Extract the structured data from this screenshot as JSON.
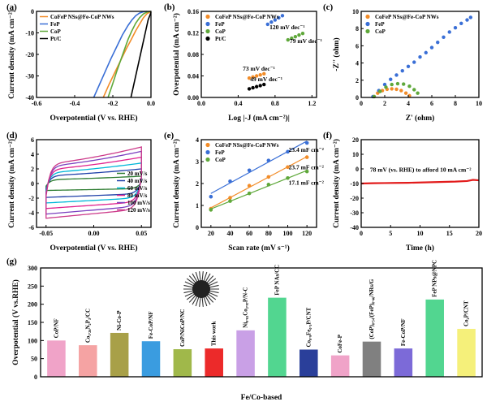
{
  "chart_data": [
    {
      "panel": "(a)",
      "type": "line",
      "ylabel": "Current density (mA cm⁻²)",
      "xlabel": "Overpotential (V vs. RHE)",
      "xlim": [
        -0.6,
        0.0
      ],
      "ylim": [
        -40,
        0
      ],
      "xticks": [
        "-0.6",
        "-0.4",
        "-0.2",
        "0.0"
      ],
      "yticks": [
        "0",
        "-10",
        "-20",
        "-30",
        "-40"
      ],
      "legend_position": "top-left",
      "series": [
        {
          "name": "CoFeP NSs@Fe-CoP NWs",
          "color": "#f28c28",
          "x": [
            -0.25,
            -0.22,
            -0.19,
            -0.16,
            -0.13,
            -0.1,
            -0.08,
            -0.06,
            -0.04,
            -0.02,
            0.0
          ],
          "y": [
            -40,
            -34,
            -28.5,
            -23,
            -17.5,
            -12.5,
            -9,
            -6,
            -3,
            -1,
            0
          ]
        },
        {
          "name": "FeP",
          "color": "#3a6fd6",
          "x": [
            -0.3,
            -0.27,
            -0.24,
            -0.21,
            -0.18,
            -0.15,
            -0.12,
            -0.1,
            -0.08,
            -0.06,
            -0.04,
            -0.02
          ],
          "y": [
            -40,
            -34,
            -28,
            -22,
            -16.5,
            -11,
            -6.5,
            -4,
            -2,
            -0.8,
            -0.2,
            0
          ]
        },
        {
          "name": "CoP",
          "color": "#5fa83a",
          "x": [
            -0.225,
            -0.2,
            -0.18,
            -0.16,
            -0.14,
            -0.12,
            -0.1,
            -0.08,
            -0.06,
            -0.04,
            -0.02,
            0.0
          ],
          "y": [
            -40,
            -33.5,
            -28,
            -23,
            -18,
            -13,
            -9,
            -5.5,
            -3,
            -1.2,
            -0.3,
            0
          ]
        },
        {
          "name": "Pt/C",
          "color": "#000000",
          "x": [
            -0.105,
            -0.09,
            -0.075,
            -0.06,
            -0.045,
            -0.03,
            -0.015,
            0.0
          ],
          "y": [
            -40,
            -34,
            -28,
            -22,
            -16,
            -10,
            -4,
            -0.5
          ]
        }
      ]
    },
    {
      "panel": "(b)",
      "type": "scatter",
      "ylabel": "Overpotential (mA cm⁻²)",
      "xlabel": "Log |-J (mA cm⁻²)|",
      "xlim": [
        0.0,
        1.25
      ],
      "ylim": [
        0.0,
        0.16
      ],
      "xticks": [
        "0.0",
        "0.4",
        "0.8",
        "1.2"
      ],
      "yticks": [
        "0.00",
        "0.04",
        "0.08",
        "0.12",
        "0.16"
      ],
      "legend_position": "top-left",
      "series": [
        {
          "name": "CoFeP NSs@Fe-CoP NWs",
          "color": "#f28c28",
          "x": [
            0.52,
            0.56,
            0.6,
            0.64,
            0.68
          ],
          "y": [
            0.036,
            0.038,
            0.04,
            0.042,
            0.044
          ]
        },
        {
          "name": "FeP",
          "color": "#3a6fd6",
          "x": [
            0.72,
            0.76,
            0.8,
            0.84,
            0.88
          ],
          "y": [
            0.136,
            0.14,
            0.144,
            0.148,
            0.152
          ]
        },
        {
          "name": "CoP",
          "color": "#5fa83a",
          "x": [
            0.94,
            0.98,
            1.02,
            1.06,
            1.1
          ],
          "y": [
            0.107,
            0.11,
            0.113,
            0.116,
            0.119
          ]
        },
        {
          "name": "Pt/C",
          "color": "#000000",
          "x": [
            0.52,
            0.56,
            0.6,
            0.64,
            0.68
          ],
          "y": [
            0.016,
            0.018,
            0.02,
            0.022,
            0.024
          ]
        }
      ],
      "annotations": [
        {
          "text": "73 mV dec⁻¹",
          "x": 0.45,
          "y": 0.05
        },
        {
          "text": "120 mV dec⁻¹",
          "x": 0.74,
          "y": 0.127
        },
        {
          "text": "79 mV dec⁻¹",
          "x": 0.96,
          "y": 0.101
        },
        {
          "text": "49 mV dec⁻¹",
          "x": 0.53,
          "y": 0.03
        }
      ]
    },
    {
      "panel": "(c)",
      "type": "scatter",
      "ylabel": "-Z'' (ohm)",
      "xlabel": "Z' (ohm)",
      "xlim": [
        0,
        10
      ],
      "ylim": [
        0,
        10
      ],
      "xticks": [
        "0",
        "2",
        "4",
        "6",
        "8",
        "10"
      ],
      "yticks": [
        "0",
        "2",
        "4",
        "6",
        "8",
        "10"
      ],
      "legend_position": "top-left",
      "series": [
        {
          "name": "CoFeP NSs@Fe-CoP NWs",
          "color": "#f28c28",
          "x": [
            1.1,
            1.4,
            1.8,
            2.2,
            2.6,
            3.0,
            3.4,
            3.8,
            4.1
          ],
          "y": [
            0.1,
            0.5,
            0.8,
            0.95,
            1.0,
            0.95,
            0.8,
            0.5,
            0.2
          ]
        },
        {
          "name": "FeP",
          "color": "#3a6fd6",
          "x": [
            1.0,
            1.5,
            2.0,
            2.5,
            3.0,
            3.5,
            4.0,
            4.5,
            5.0,
            5.5,
            6.0,
            6.5,
            7.0,
            7.5,
            8.0,
            8.5,
            9.0,
            9.3
          ],
          "y": [
            0.1,
            0.8,
            1.5,
            2.1,
            2.6,
            3.1,
            3.6,
            4.1,
            4.7,
            5.2,
            5.8,
            6.4,
            7.0,
            7.6,
            8.1,
            8.6,
            9.0,
            9.3
          ]
        },
        {
          "name": "CoP",
          "color": "#5fa83a",
          "x": [
            1.1,
            1.6,
            2.1,
            2.6,
            3.1,
            3.6,
            4.1,
            4.5,
            4.8
          ],
          "y": [
            0.1,
            0.7,
            1.2,
            1.5,
            1.6,
            1.55,
            1.3,
            0.9,
            0.5
          ]
        }
      ]
    },
    {
      "panel": "(d)",
      "type": "line",
      "ylabel": "Current density (mA cm⁻²)",
      "xlabel": "Overpotential (V vs. RHE)",
      "xlim": [
        -0.06,
        0.06
      ],
      "ylim": [
        -6,
        6
      ],
      "xticks": [
        "-0.05",
        "0.00",
        "0.05"
      ],
      "yticks": [
        "6",
        "4",
        "2",
        "0",
        "-2",
        "-4",
        "-6"
      ],
      "legend_position": "bottom-right",
      "series": [
        {
          "name": "20 mV/s",
          "color": "#2e7d32",
          "amplitude": 1.0
        },
        {
          "name": "40 mV/s",
          "color": "#1e3fa8",
          "amplitude": 2.0
        },
        {
          "name": "60 mV/s",
          "color": "#00b7d8",
          "amplitude": 2.8
        },
        {
          "name": "80 mV/s",
          "color": "#e0208c",
          "amplitude": 3.6
        },
        {
          "name": "100 mV/s",
          "color": "#7b3fbf",
          "amplitude": 4.4
        },
        {
          "name": "120 mV/s",
          "color": "#cc3a8a",
          "amplitude": 5.0
        }
      ]
    },
    {
      "panel": "(e)",
      "type": "scatter",
      "ylabel": "Current density (mA cm⁻²)",
      "xlabel": "Scan rate (mV s⁻¹)",
      "xlim": [
        10,
        130
      ],
      "ylim": [
        0,
        4
      ],
      "xticks": [
        "20",
        "40",
        "60",
        "80",
        "100",
        "120"
      ],
      "yticks": [
        "0",
        "1",
        "2",
        "3",
        "4"
      ],
      "legend_position": "top-left",
      "series": [
        {
          "name": "CoFeP NSs@Fe-CoP NWs",
          "color": "#f28c28",
          "x": [
            20,
            40,
            60,
            80,
            100,
            120
          ],
          "y": [
            0.85,
            1.35,
            1.9,
            2.3,
            2.75,
            3.2
          ]
        },
        {
          "name": "FeP",
          "color": "#3a6fd6",
          "x": [
            20,
            40,
            60,
            80,
            100,
            120
          ],
          "y": [
            1.4,
            2.1,
            2.6,
            3.05,
            3.45,
            3.85
          ]
        },
        {
          "name": "CoP",
          "color": "#5fa83a",
          "x": [
            20,
            40,
            60,
            80,
            100,
            120
          ],
          "y": [
            0.8,
            1.2,
            1.55,
            1.95,
            2.25,
            2.55
          ]
        }
      ],
      "annotations": [
        {
          "text": "23.4 mF cm⁻²",
          "x": 101,
          "y": 3.45
        },
        {
          "text": "23.7 mF cm⁻²",
          "x": 101,
          "y": 2.65
        },
        {
          "text": "17.1 mF cm⁻²",
          "x": 101,
          "y": 1.95
        }
      ]
    },
    {
      "panel": "(f)",
      "type": "line",
      "ylabel": "Current density (mA cm⁻²)",
      "xlabel": "Time (h)",
      "xlim": [
        0,
        20
      ],
      "ylim": [
        -40,
        20
      ],
      "xticks": [
        "0",
        "5",
        "10",
        "15",
        "20"
      ],
      "yticks": [
        "20",
        "10",
        "0",
        "-10",
        "-20",
        "-30",
        "-40"
      ],
      "series": [
        {
          "name": "",
          "color": "#e21b1b",
          "x": [
            0,
            2,
            4,
            6,
            8,
            10,
            12,
            14,
            16,
            18,
            19,
            20
          ],
          "y": [
            -10,
            -9.8,
            -9.7,
            -9.6,
            -9.5,
            -9.3,
            -9.1,
            -8.9,
            -8.7,
            -8.3,
            -7.5,
            -7.8
          ]
        }
      ],
      "annotations": [
        {
          "text": "78 mV (vs. RHE) to afford 10 mA cm⁻²",
          "x": 1.5,
          "y": -2
        }
      ]
    },
    {
      "panel": "(g)",
      "type": "bar",
      "ylabel": "Overpotential (V vs.RHE)",
      "xlabel": "Fe/Co-based",
      "ylim": [
        0,
        300
      ],
      "yticks": [
        "0",
        "50",
        "100",
        "150",
        "200",
        "250",
        "300"
      ],
      "categories": [
        "CoP/NF",
        "Co₁.₂₆N₂P₃/CC",
        "Ni-Co-P",
        "Fe-CoP/NF",
        "CoP/NiCoP/NC",
        "This work",
        "Ni₀.₀₃Co₂.₉₇P/N-C",
        "FeP NAs/CC",
        "Co₀.₉Fe₀.₁P/CNT",
        "CoFe-P",
        "(CoP)₀.₅₄/(FeP)₀.₄₆/NRs/G",
        "Fe-CoP/NF",
        "FeP NPs@NPC",
        "Co₂P/CNT"
      ],
      "values": [
        100,
        87,
        121,
        98,
        76,
        78,
        128,
        218,
        75,
        59,
        97,
        78,
        213,
        132
      ],
      "colors": [
        "#f0a3c8",
        "#f5a3a3",
        "#a8a048",
        "#3a9ce0",
        "#a0b84a",
        "#ec2a2a",
        "#c9a0e6",
        "#52d690",
        "#2a3f9a",
        "#f0a3c8",
        "#808080",
        "#7c6ad8",
        "#52d690",
        "#f5f07a"
      ]
    }
  ]
}
